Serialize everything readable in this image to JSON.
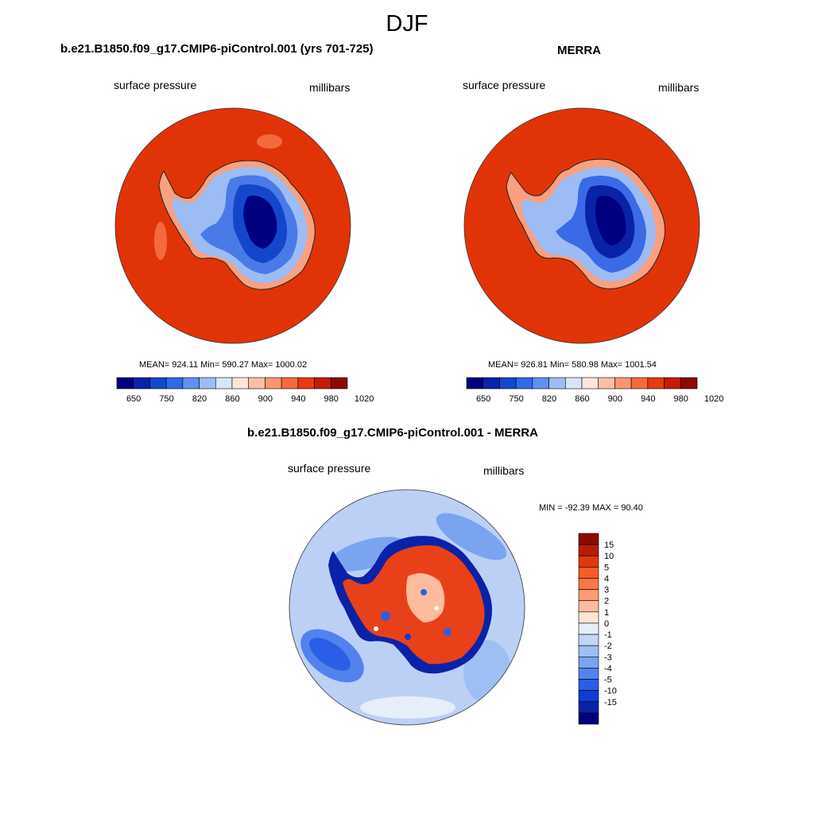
{
  "title": "DJF",
  "panels": [
    {
      "title": "b.e21.B1850.f09_g17.CMIP6-piControl.001 (yrs 701-725)",
      "left_label": "surface pressure",
      "right_label": "millibars",
      "stats": "MEAN= 924.11  Min= 590.27  Max= 1000.02"
    },
    {
      "title": "MERRA",
      "left_label": "surface pressure",
      "right_label": "millibars",
      "stats": "MEAN= 926.81  Min= 580.98  Max= 1001.54"
    },
    {
      "title": "b.e21.B1850.f09_g17.CMIP6-piControl.001 - MERRA",
      "left_label": "surface pressure",
      "right_label": "millibars",
      "stats": "MIN = -92.39 MAX =  90.40"
    }
  ],
  "abs_colorbar": {
    "labels": [
      "650",
      "750",
      "820",
      "860",
      "900",
      "940",
      "980",
      "1020"
    ],
    "colors": [
      "#00007f",
      "#0a22a8",
      "#1446cc",
      "#2e6ae8",
      "#6090f0",
      "#9dbcf4",
      "#d6e6f8",
      "#fde6d8",
      "#fbc0a4",
      "#f99670",
      "#f46a3e",
      "#e63a12",
      "#c21c06",
      "#8a0a02"
    ]
  },
  "diff_colorbar": {
    "labels": [
      "15",
      "10",
      "5",
      "4",
      "3",
      "2",
      "1",
      "0",
      "-1",
      "-2",
      "-3",
      "-4",
      "-5",
      "-10",
      "-15"
    ],
    "colors": [
      "#8a0a02",
      "#b81c06",
      "#e03810",
      "#f65a26",
      "#f9784a",
      "#fb9a74",
      "#fdbc9e",
      "#fde4d4",
      "#e6eefa",
      "#c2d6f6",
      "#9ebff4",
      "#7aa4f0",
      "#5282ec",
      "#2a5ee6",
      "#0e3cd4",
      "#0a22a8",
      "#00007f"
    ]
  },
  "map_colors": {
    "ocean_abs": "#e03408",
    "ocean_diff": "#bcd0f6"
  }
}
